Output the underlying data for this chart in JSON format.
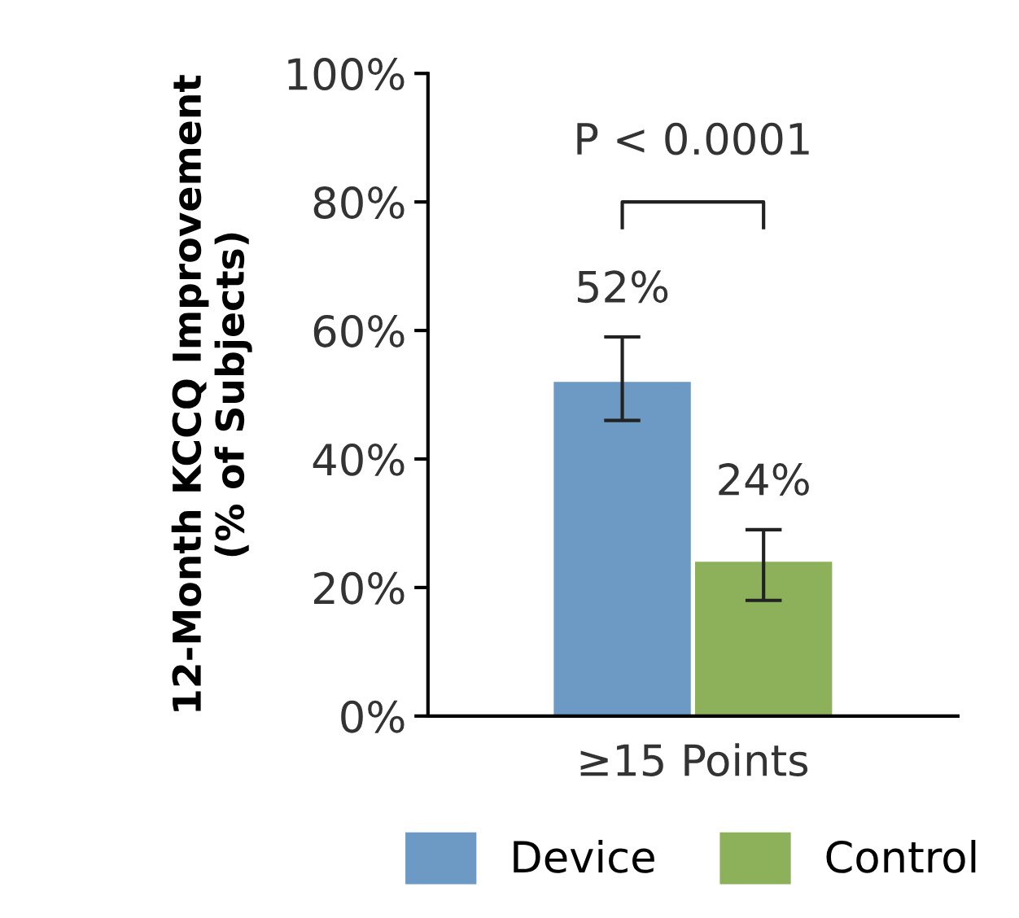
{
  "chart_data": {
    "type": "bar",
    "ylabel": "12-Month KCCQ Improvement\n(% of Subjects)",
    "categories": [
      "≥15 Points"
    ],
    "series": [
      {
        "name": "Device",
        "color": "#6d9ac4",
        "values": [
          52
        ],
        "errors": [
          [
            46,
            59
          ]
        ],
        "value_labels": [
          "52%"
        ]
      },
      {
        "name": "Control",
        "color": "#8db05a",
        "values": [
          24
        ],
        "errors": [
          [
            18,
            29
          ]
        ],
        "value_labels": [
          "24%"
        ]
      }
    ],
    "ylim": [
      0,
      100
    ],
    "yticks": [
      {
        "value": 0,
        "label": "0%"
      },
      {
        "value": 20,
        "label": "20%"
      },
      {
        "value": 40,
        "label": "40%"
      },
      {
        "value": 60,
        "label": "60%"
      },
      {
        "value": 80,
        "label": "80%"
      },
      {
        "value": 100,
        "label": "100%"
      }
    ],
    "annotations": [
      "P < 0.0001"
    ],
    "grid": false,
    "legend": "bottom"
  }
}
